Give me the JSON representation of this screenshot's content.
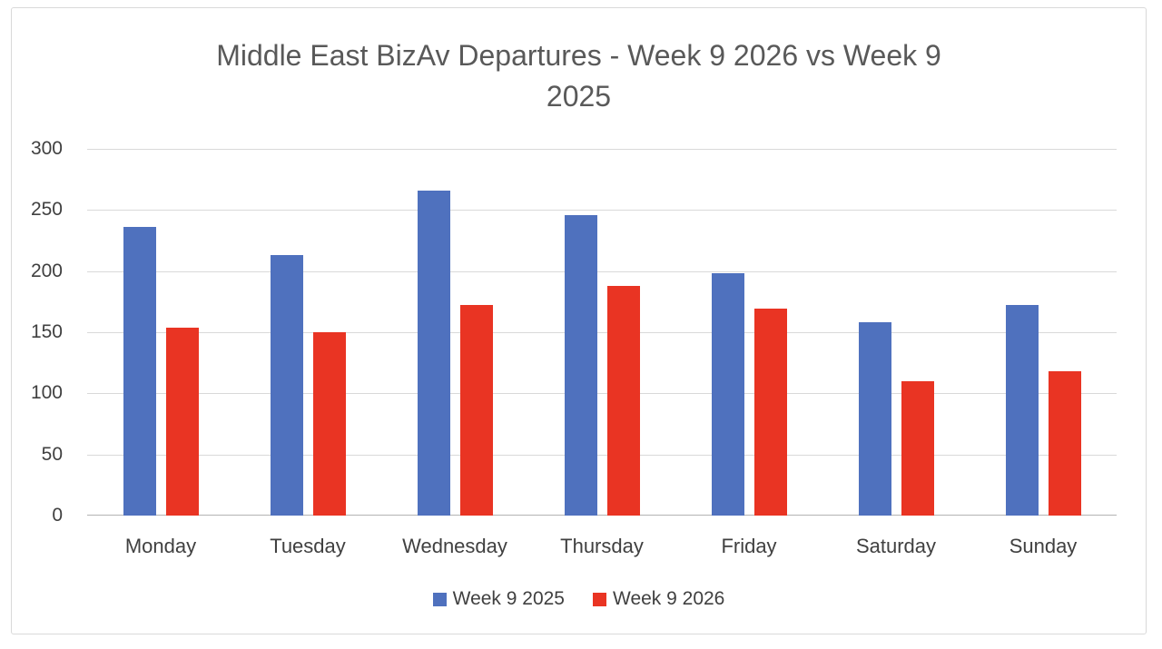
{
  "frame": {
    "background": "#ffffff",
    "border_color": "#d9d9d9"
  },
  "chart_data": {
    "type": "bar",
    "title": "Middle East BizAv Departures - Week 9 2026 vs Week 9 2025",
    "title_lines": [
      "Middle East BizAv Departures - Week 9 2026 vs Week 9",
      "2025"
    ],
    "categories": [
      "Monday",
      "Tuesday",
      "Wednesday",
      "Thursday",
      "Friday",
      "Saturday",
      "Sunday"
    ],
    "series": [
      {
        "name": "Week 9 2025",
        "color": "#4f71be",
        "values": [
          236,
          213,
          266,
          246,
          198,
          158,
          172
        ]
      },
      {
        "name": "Week 9 2026",
        "color": "#e93423",
        "values": [
          154,
          150,
          172,
          188,
          169,
          110,
          118
        ]
      }
    ],
    "y_axis": {
      "min": 0,
      "max": 300,
      "tick_interval": 50,
      "tick_labels": [
        "0",
        "50",
        "100",
        "150",
        "200",
        "250",
        "300"
      ]
    },
    "xlabel": "",
    "ylabel": "",
    "grid": true,
    "legend_position": "bottom",
    "styles": {
      "gridline_color": "#d9d9d9",
      "axis_line_color": "#b3b3b3",
      "title_color": "#595959",
      "label_color": "#404040"
    }
  }
}
